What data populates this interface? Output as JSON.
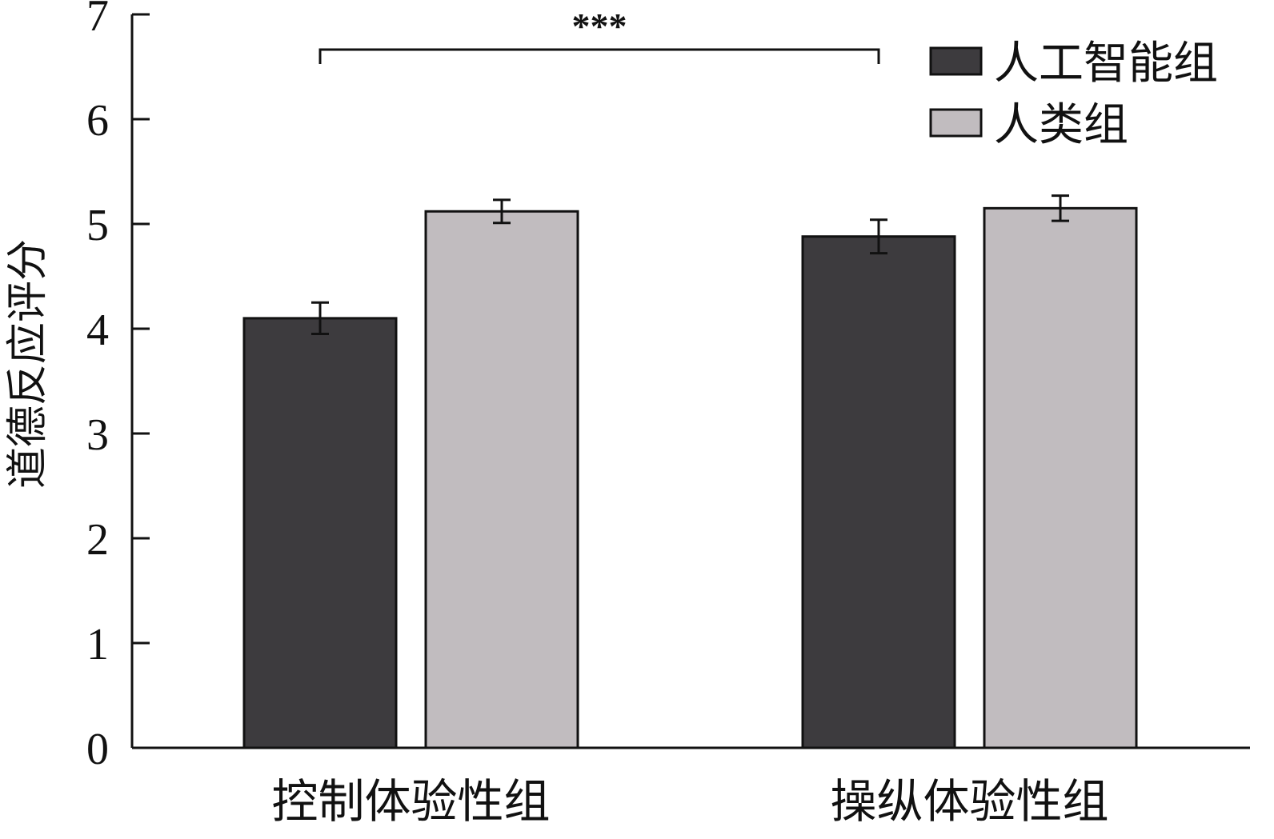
{
  "chart_data": {
    "type": "bar",
    "title": "",
    "xlabel": "",
    "ylabel": "道德反应评分",
    "ylim": [
      0,
      7
    ],
    "yticks": [
      0,
      1,
      2,
      3,
      4,
      5,
      6,
      7
    ],
    "categories": [
      "控制体验性组",
      "操纵体验性组"
    ],
    "series": [
      {
        "name": "人工智能组",
        "color": "#3d3b3e",
        "values": [
          4.1,
          4.88
        ],
        "errors": [
          0.15,
          0.16
        ]
      },
      {
        "name": "人类组",
        "color": "#c1bcbf",
        "values": [
          5.12,
          5.15
        ],
        "errors": [
          0.11,
          0.12
        ]
      }
    ],
    "significance": {
      "label": "***",
      "bars": [
        [
          0,
          0
        ],
        [
          1,
          0
        ]
      ]
    },
    "legend_position": "top-right",
    "grid": false
  }
}
